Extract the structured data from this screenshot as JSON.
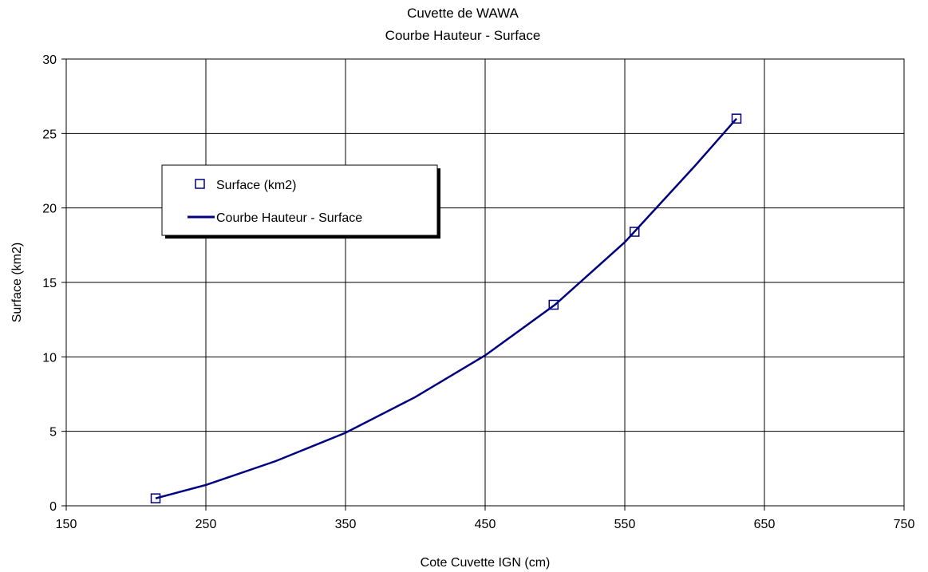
{
  "chart_data": {
    "type": "scatter",
    "title": "Cuvette de WAWA",
    "subtitle": "Courbe Hauteur - Surface",
    "xlabel": "Cote Cuvette IGN (cm)",
    "ylabel": "Surface (km2)",
    "xlim": [
      150,
      750
    ],
    "ylim": [
      0,
      30
    ],
    "xticks": [
      150,
      250,
      350,
      450,
      550,
      650,
      750
    ],
    "yticks": [
      0,
      5,
      10,
      15,
      20,
      25,
      30
    ],
    "grid": true,
    "legend_position": "upper-left",
    "series": [
      {
        "name": "Surface (km2)",
        "kind": "marker",
        "marker": "square",
        "color": "#000080",
        "x": [
          214,
          499,
          557,
          630
        ],
        "y": [
          0.5,
          13.5,
          18.4,
          26.0
        ]
      },
      {
        "name": "Courbe Hauteur - Surface",
        "kind": "line",
        "color": "#000080",
        "x": [
          214,
          250,
          300,
          350,
          400,
          450,
          500,
          550,
          600,
          630
        ],
        "y": [
          0.5,
          1.4,
          3.0,
          4.9,
          7.3,
          10.1,
          13.5,
          17.7,
          22.8,
          26.0
        ]
      }
    ]
  }
}
